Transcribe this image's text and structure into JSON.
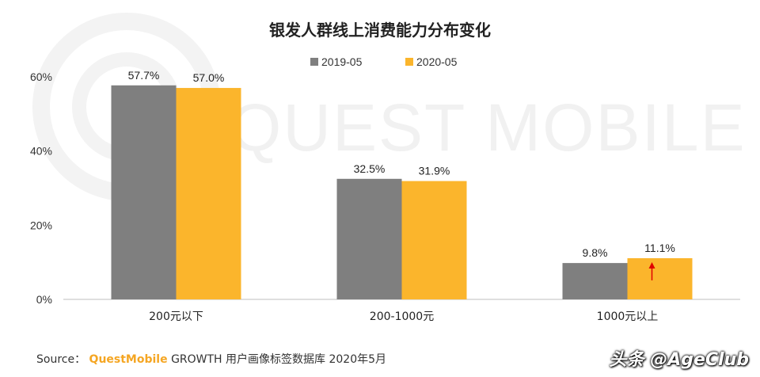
{
  "chart_data": {
    "type": "bar",
    "title": "银发人群线上消费能力分布变化",
    "categories": [
      "200元以下",
      "200-1000元",
      "1000元以上"
    ],
    "series": [
      {
        "name": "2019-05",
        "values": [
          57.7,
          32.5,
          9.8
        ],
        "labels": [
          "57.7%",
          "32.5%",
          "9.8%"
        ],
        "color": "#7f7f7f"
      },
      {
        "name": "2020-05",
        "values": [
          57.0,
          31.9,
          11.1
        ],
        "labels": [
          "57.0%",
          "31.9%",
          "11.1%"
        ],
        "color": "#fbb52c"
      }
    ],
    "yticks": [
      "0%",
      "20%",
      "40%",
      "60%"
    ],
    "ylim": [
      0,
      60
    ],
    "legend_position": "top",
    "grid": false,
    "annotation": "red up-arrow on 1000元以上 2020-05 bar"
  },
  "watermark": "QUEST MOBILE",
  "source": {
    "prefix": "Source：",
    "brand": "QuestMobile",
    "rest": "GROWTH 用户画像标签数据库 2020年5月"
  },
  "credit": "头条 @AgeClub",
  "colors": {
    "series_2019": "#7f7f7f",
    "series_2020": "#fbb52c",
    "arrow": "#e00000",
    "axis": "#bfbfbf"
  }
}
